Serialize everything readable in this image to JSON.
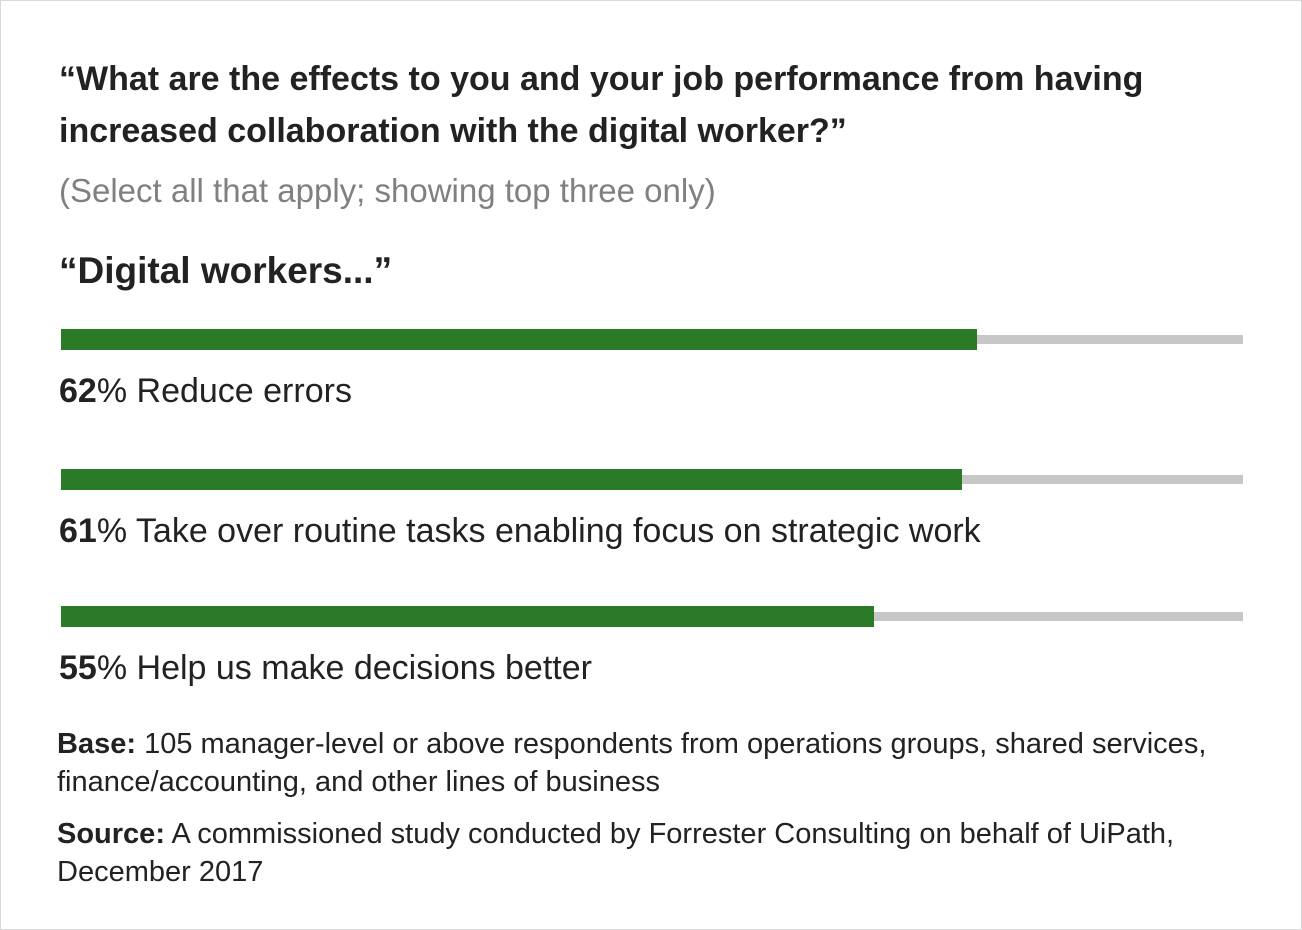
{
  "header": {
    "question": "“What are the effects to you and your job performance from having increased collaboration with the digital worker?”",
    "subtitle": "(Select all that apply; showing top three only)",
    "lead": "“Digital workers...”"
  },
  "colors": {
    "bar_fill": "#2a7a27",
    "bar_track": "#c7c7c7",
    "text": "#222222",
    "subtitle": "#808080"
  },
  "chart_data": {
    "type": "bar",
    "orientation": "horizontal",
    "title": "“Digital workers...”",
    "xlim": [
      0,
      80
    ],
    "grid": false,
    "categories": [
      "Reduce errors",
      "Take over routine tasks enabling focus on strategic work",
      "Help us make decisions better"
    ],
    "values": [
      62,
      61,
      55
    ],
    "value_labels": [
      "62",
      "61",
      "55"
    ],
    "unit_suffix": "%"
  },
  "footer": {
    "base_key": "Base:",
    "base_text": "105 manager-level or above respondents from operations groups, shared services, finance/accounting, and other lines of business",
    "source_key": "Source:",
    "source_text": "A commissioned study conducted by Forrester Consulting on behalf of UiPath, December 2017"
  }
}
